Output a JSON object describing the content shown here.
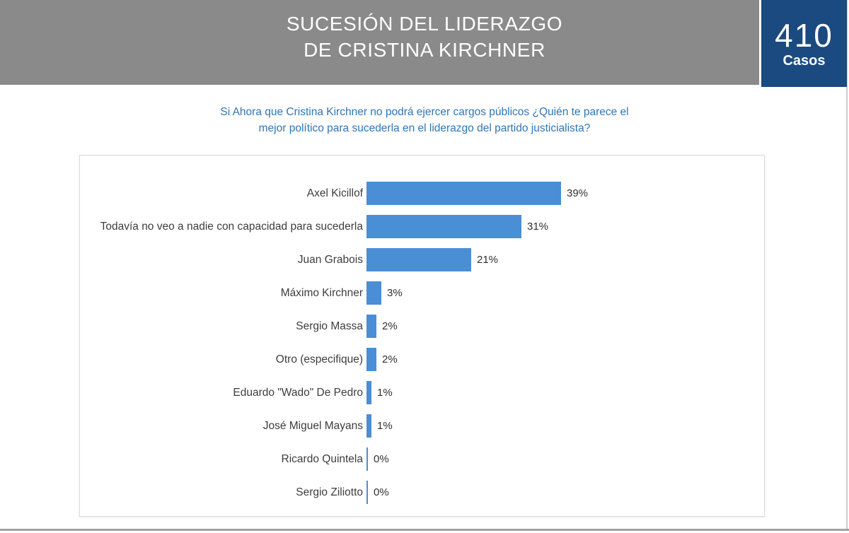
{
  "header": {
    "title_line1": "SUCESIÓN DEL LIDERAZGO",
    "title_line2": "DE CRISTINA KIRCHNER",
    "cases_count": "410",
    "cases_label": "Casos"
  },
  "question": {
    "line1": "Si Ahora que Cristina Kirchner no podrá ejercer cargos públicos ¿Quién te parece el",
    "line2": "mejor político para sucederla en el liderazgo del partido justicialista?"
  },
  "colors": {
    "header-bg": "#8a8a8a",
    "cases-bg": "#1a4a80",
    "question-text": "#2e75b6",
    "bar": "#4a8ed5"
  },
  "chart_data": {
    "type": "bar",
    "orientation": "horizontal",
    "title": "",
    "xlabel": "",
    "ylabel": "",
    "categories": [
      "Axel Kicillof",
      "Todavía no veo a nadie con capacidad para sucederla",
      "Juan Grabois",
      "Máximo Kirchner",
      "Sergio Massa",
      "Otro (especifique)",
      "Eduardo \"Wado\" De Pedro",
      "José Miguel Mayans",
      "Ricardo Quintela",
      "Sergio Ziliotto"
    ],
    "values": [
      39,
      31,
      21,
      3,
      2,
      2,
      1,
      1,
      0,
      0
    ],
    "value_labels": [
      "39%",
      "31%",
      "21%",
      "3%",
      "2%",
      "2%",
      "1%",
      "1%",
      "0%",
      "0%"
    ],
    "xlim": [
      0,
      79
    ],
    "grid": false,
    "value_axis_visible": false,
    "data_labels": "outside-end"
  }
}
